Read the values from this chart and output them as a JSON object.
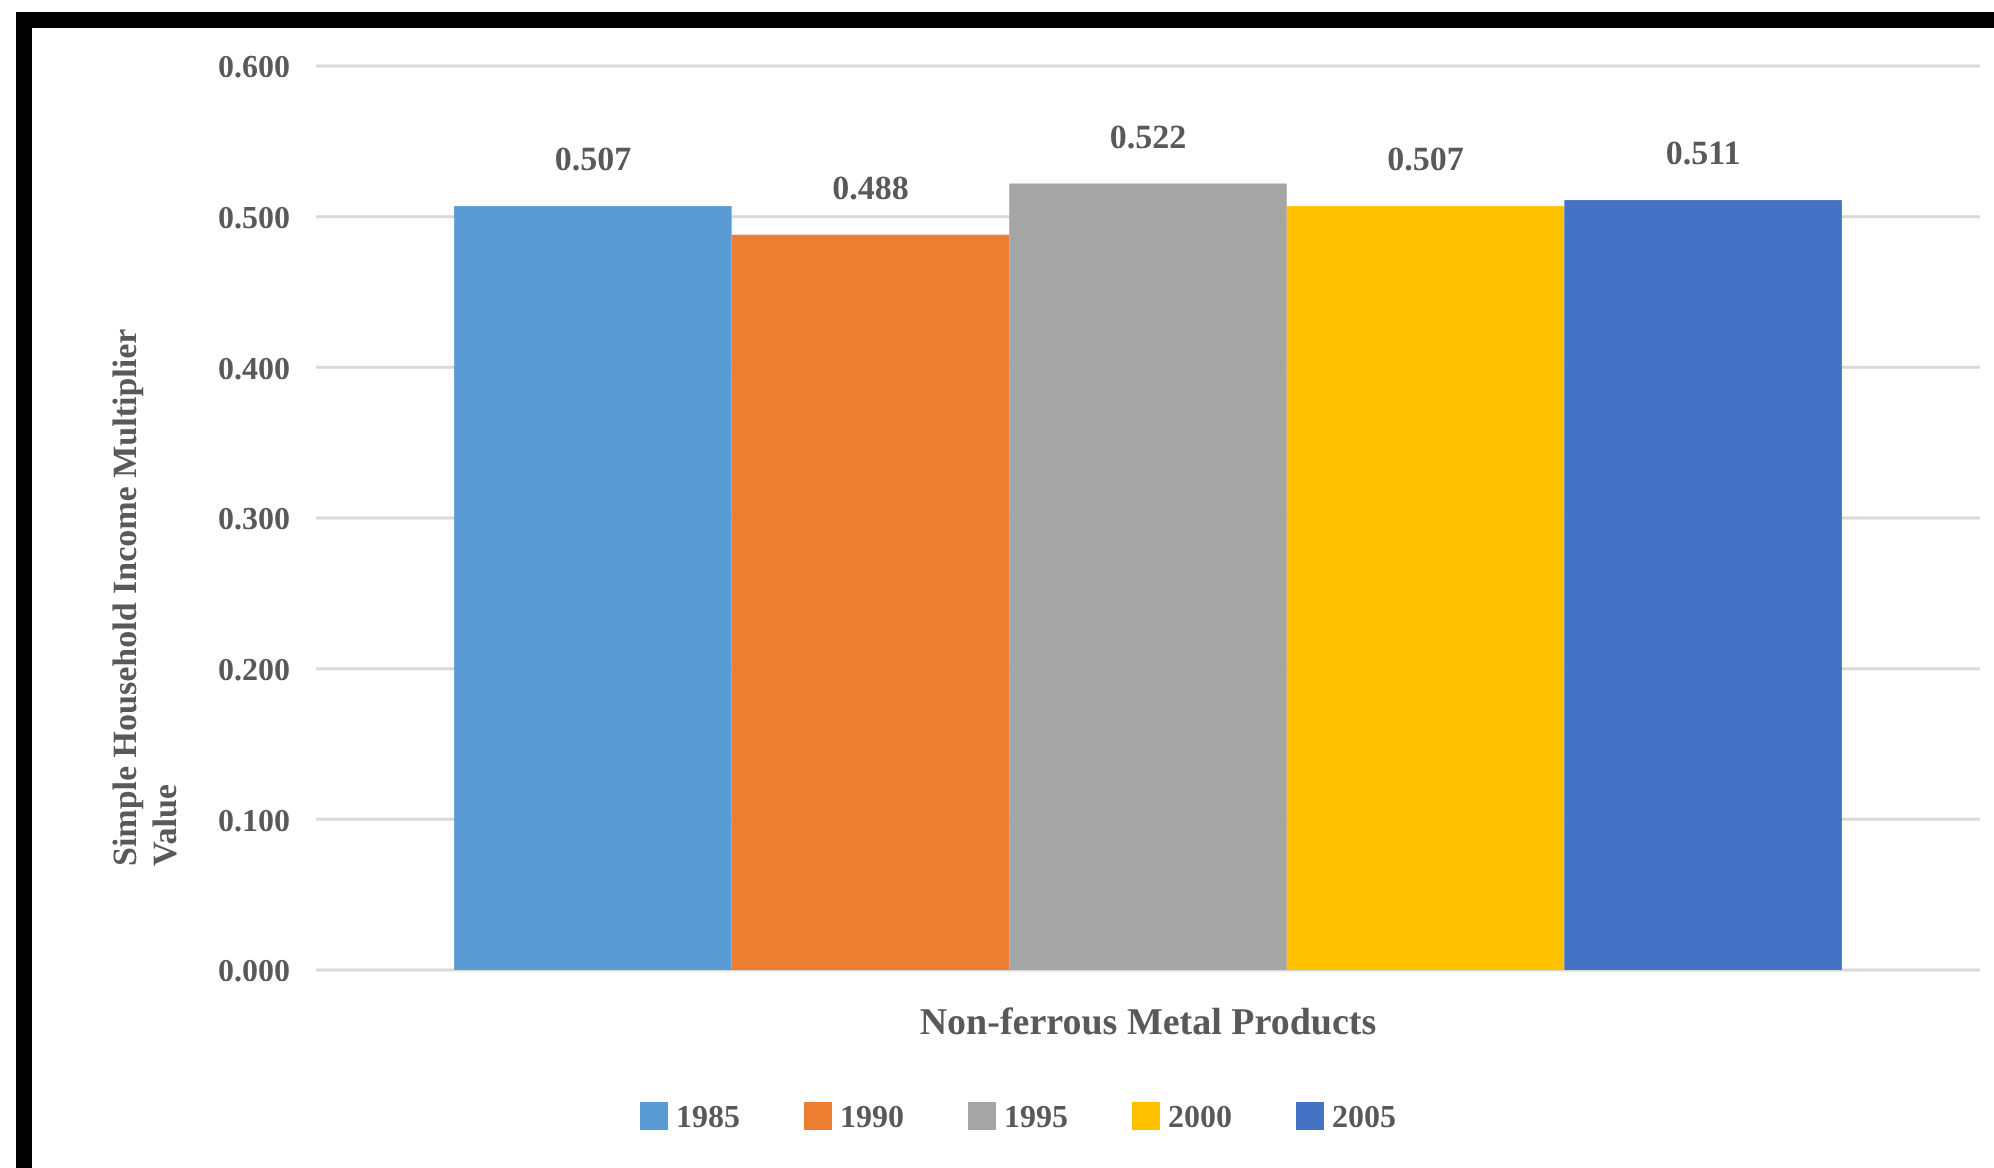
{
  "chart_data": {
    "type": "bar",
    "ylabel": "Simple Household Income Multiplier Value",
    "categories": [
      "Non-ferrous Metal Products"
    ],
    "series": [
      {
        "name": "1985",
        "color": "#5b9bd5",
        "values": [
          0.507
        ]
      },
      {
        "name": "1990",
        "color": "#ed7d31",
        "values": [
          0.488
        ]
      },
      {
        "name": "1995",
        "color": "#a5a5a5",
        "values": [
          0.522
        ]
      },
      {
        "name": "2000",
        "color": "#ffc000",
        "values": [
          0.507
        ]
      },
      {
        "name": "2005",
        "color": "#4472c4",
        "values": [
          0.511
        ]
      }
    ],
    "ylim": [
      0,
      0.6
    ],
    "yticks": [
      {
        "value": 0,
        "label": "0.000"
      },
      {
        "value": 0.1,
        "label": "0.100"
      },
      {
        "value": 0.2,
        "label": "0.200"
      },
      {
        "value": 0.3,
        "label": "0.300"
      },
      {
        "value": 0.4,
        "label": "0.400"
      },
      {
        "value": 0.5,
        "label": "0.500"
      },
      {
        "value": 0.6,
        "label": "0.600"
      }
    ],
    "grid": "y",
    "legend": "bottom",
    "data_labels": true
  }
}
